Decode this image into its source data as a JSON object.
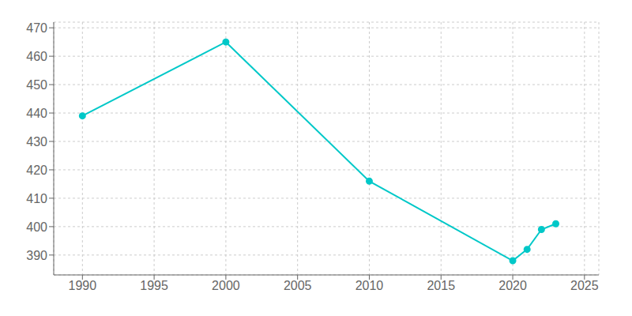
{
  "chart_data": {
    "type": "line",
    "x": [
      1990,
      2000,
      2010,
      2020,
      2021,
      2022,
      2023
    ],
    "values": [
      439,
      465,
      416,
      388,
      392,
      399,
      401
    ],
    "color": "#00C8C8",
    "marker": "o",
    "xlim": [
      1988,
      2026
    ],
    "ylim": [
      383,
      472
    ],
    "xticks": [
      1990,
      1995,
      2000,
      2005,
      2010,
      2015,
      2020,
      2025
    ],
    "yticks": [
      390,
      400,
      410,
      420,
      430,
      440,
      450,
      460,
      470
    ],
    "grid": true
  }
}
